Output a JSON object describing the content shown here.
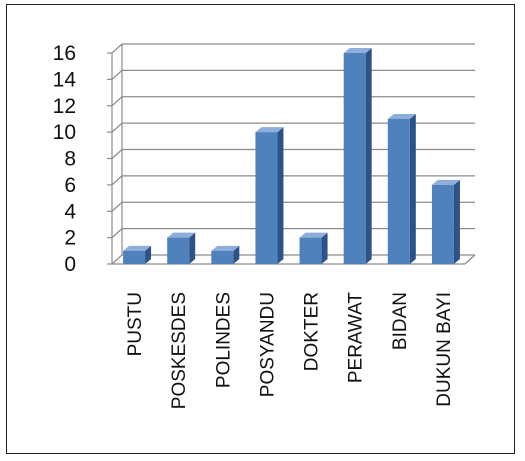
{
  "chart_data": {
    "type": "bar",
    "title": "",
    "xlabel": "",
    "ylabel": "",
    "categories": [
      "PUSTU",
      "POSKESDES",
      "POLINDES",
      "POSYANDU",
      "DOKTER",
      "PERAWAT",
      "BIDAN",
      "DUKUN BAYI"
    ],
    "values": [
      1,
      2,
      1,
      10,
      2,
      16,
      11,
      6
    ],
    "ylim": [
      0,
      16
    ],
    "yticks": [
      0,
      2,
      4,
      6,
      8,
      10,
      12,
      14,
      16
    ],
    "grid": true,
    "style": "3d",
    "legend": "none",
    "colors": {
      "bar_front": "#4f81bd",
      "bar_side": "#2c5288",
      "bar_top": "#8eaedb",
      "grid": "#8c8c8c"
    }
  }
}
